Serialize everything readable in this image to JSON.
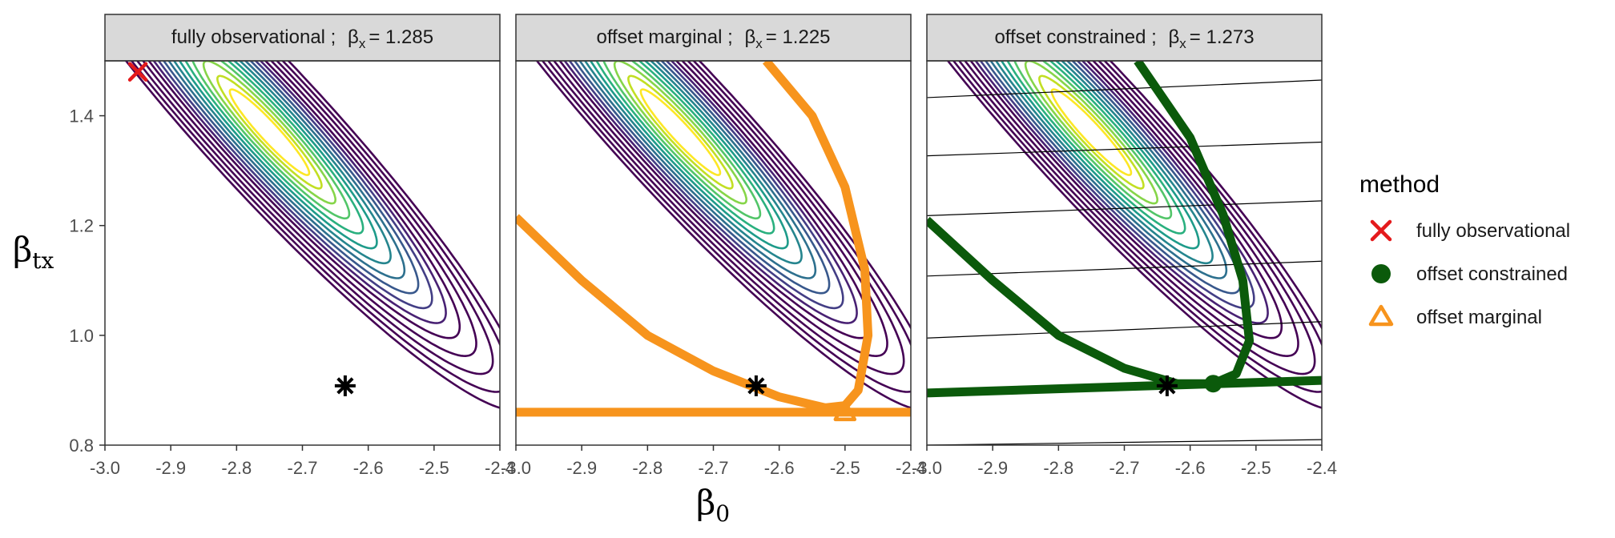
{
  "chart_data": {
    "type": "contour",
    "xlabel": "β0",
    "ylabel": "βtx",
    "x_ticks": [
      "-3.0",
      "-2.9",
      "-2.8",
      "-2.7",
      "-2.6",
      "-2.5",
      "-2.4"
    ],
    "y_ticks": [
      "0.8",
      "1.0",
      "1.2",
      "1.4"
    ],
    "xlim": [
      -3.0,
      -2.4
    ],
    "ylim": [
      0.8,
      1.5
    ],
    "grid": false,
    "legend_position": "right",
    "contour_colors": [
      "#FDE725",
      "#C2DF23",
      "#86D549",
      "#52C569",
      "#2AB07F",
      "#1E9B8A",
      "#25858E",
      "#2D708E",
      "#38588C",
      "#433E85",
      "#482173",
      "#440154"
    ],
    "panels": [
      {
        "strip_label": "fully observational ;",
        "beta_symbol": "β",
        "beta_sub": "x",
        "beta_value": "= 1.285",
        "star": {
          "x": -2.635,
          "y": 0.908
        },
        "marker": {
          "method": "fully observational",
          "x": -2.95,
          "y": 1.48
        }
      },
      {
        "strip_label": "offset marginal ;",
        "beta_symbol": "β",
        "beta_sub": "x",
        "beta_value": "= 1.225",
        "star": {
          "x": -2.635,
          "y": 0.908
        },
        "marker": {
          "method": "offset marginal",
          "x": -2.5,
          "y": 0.86
        },
        "constraint_line_y": 0.86
      },
      {
        "strip_label": "offset constrained ;",
        "beta_symbol": "β",
        "beta_sub": "x",
        "beta_value": "= 1.273",
        "star": {
          "x": -2.635,
          "y": 0.908
        },
        "marker": {
          "method": "offset constrained",
          "x": -2.565,
          "y": 0.912
        },
        "constraint_line": {
          "x": [
            -3.0,
            -2.4
          ],
          "y": [
            0.895,
            0.918
          ]
        }
      }
    ],
    "legend": {
      "title": "method",
      "entries": [
        {
          "label": "fully observational",
          "shape": "cross",
          "color": "#E41A1C"
        },
        {
          "label": "offset constrained",
          "shape": "circle",
          "color": "#0B5A0B"
        },
        {
          "label": "offset marginal",
          "shape": "triangle",
          "color": "#F7941D"
        }
      ]
    }
  }
}
